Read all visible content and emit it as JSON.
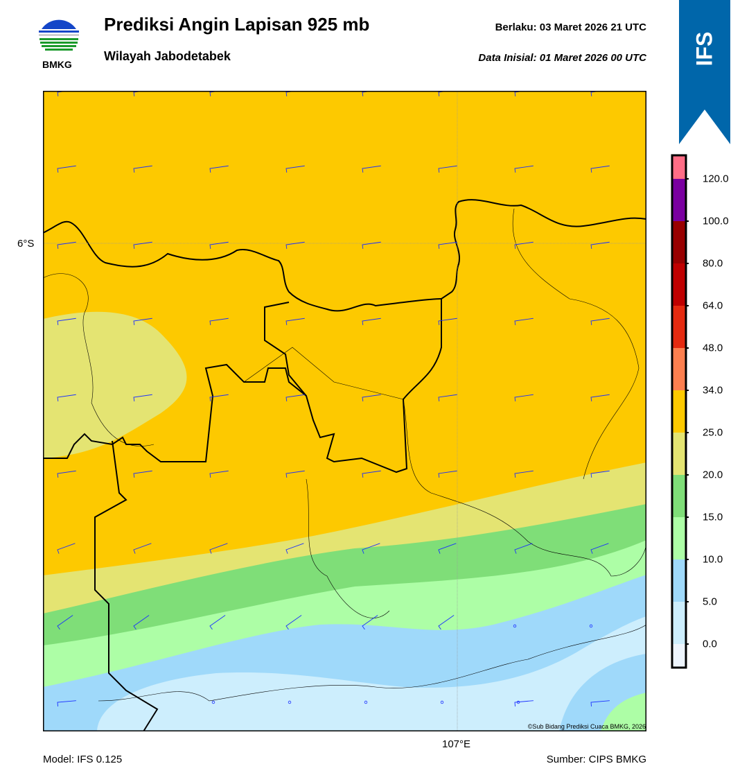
{
  "header": {
    "title": "Prediksi Angin Lapisan 925 mb",
    "subtitle": "Wilayah Jabodetabek",
    "valid_label": "Berlaku:  03 Maret 2026 21 UTC",
    "init_label": "Data Inisial:  01 Maret 2026 00 UTC",
    "logo_text": "BMKG",
    "model_badge": "IFS"
  },
  "map": {
    "lat_label": "6°S",
    "lon_label": "107°E",
    "copyright": "©Sub Bidang Prediksi Cuaca BMKG, 2026"
  },
  "footer": {
    "model": "Model: IFS 0.125",
    "source": "Sumber: CIPS BMKG"
  },
  "colorbar": {
    "colors": [
      "#eef5fd",
      "#cdeefd",
      "#9fd9fa",
      "#adfea6",
      "#7fde78",
      "#e4e472",
      "#fdc900",
      "#fd7f4f",
      "#e52a10",
      "#bf0000",
      "#980000",
      "#7a00a0",
      "#ff6d86"
    ],
    "ticks": [
      "0.0",
      "5.0",
      "10.0",
      "15.0",
      "20.0",
      "25.0",
      "34.0",
      "48.0",
      "64.0",
      "80.0",
      "100.0",
      "120.0"
    ]
  },
  "colors": {
    "ribbon": "#0066aa",
    "barb": "#1a2fff"
  }
}
